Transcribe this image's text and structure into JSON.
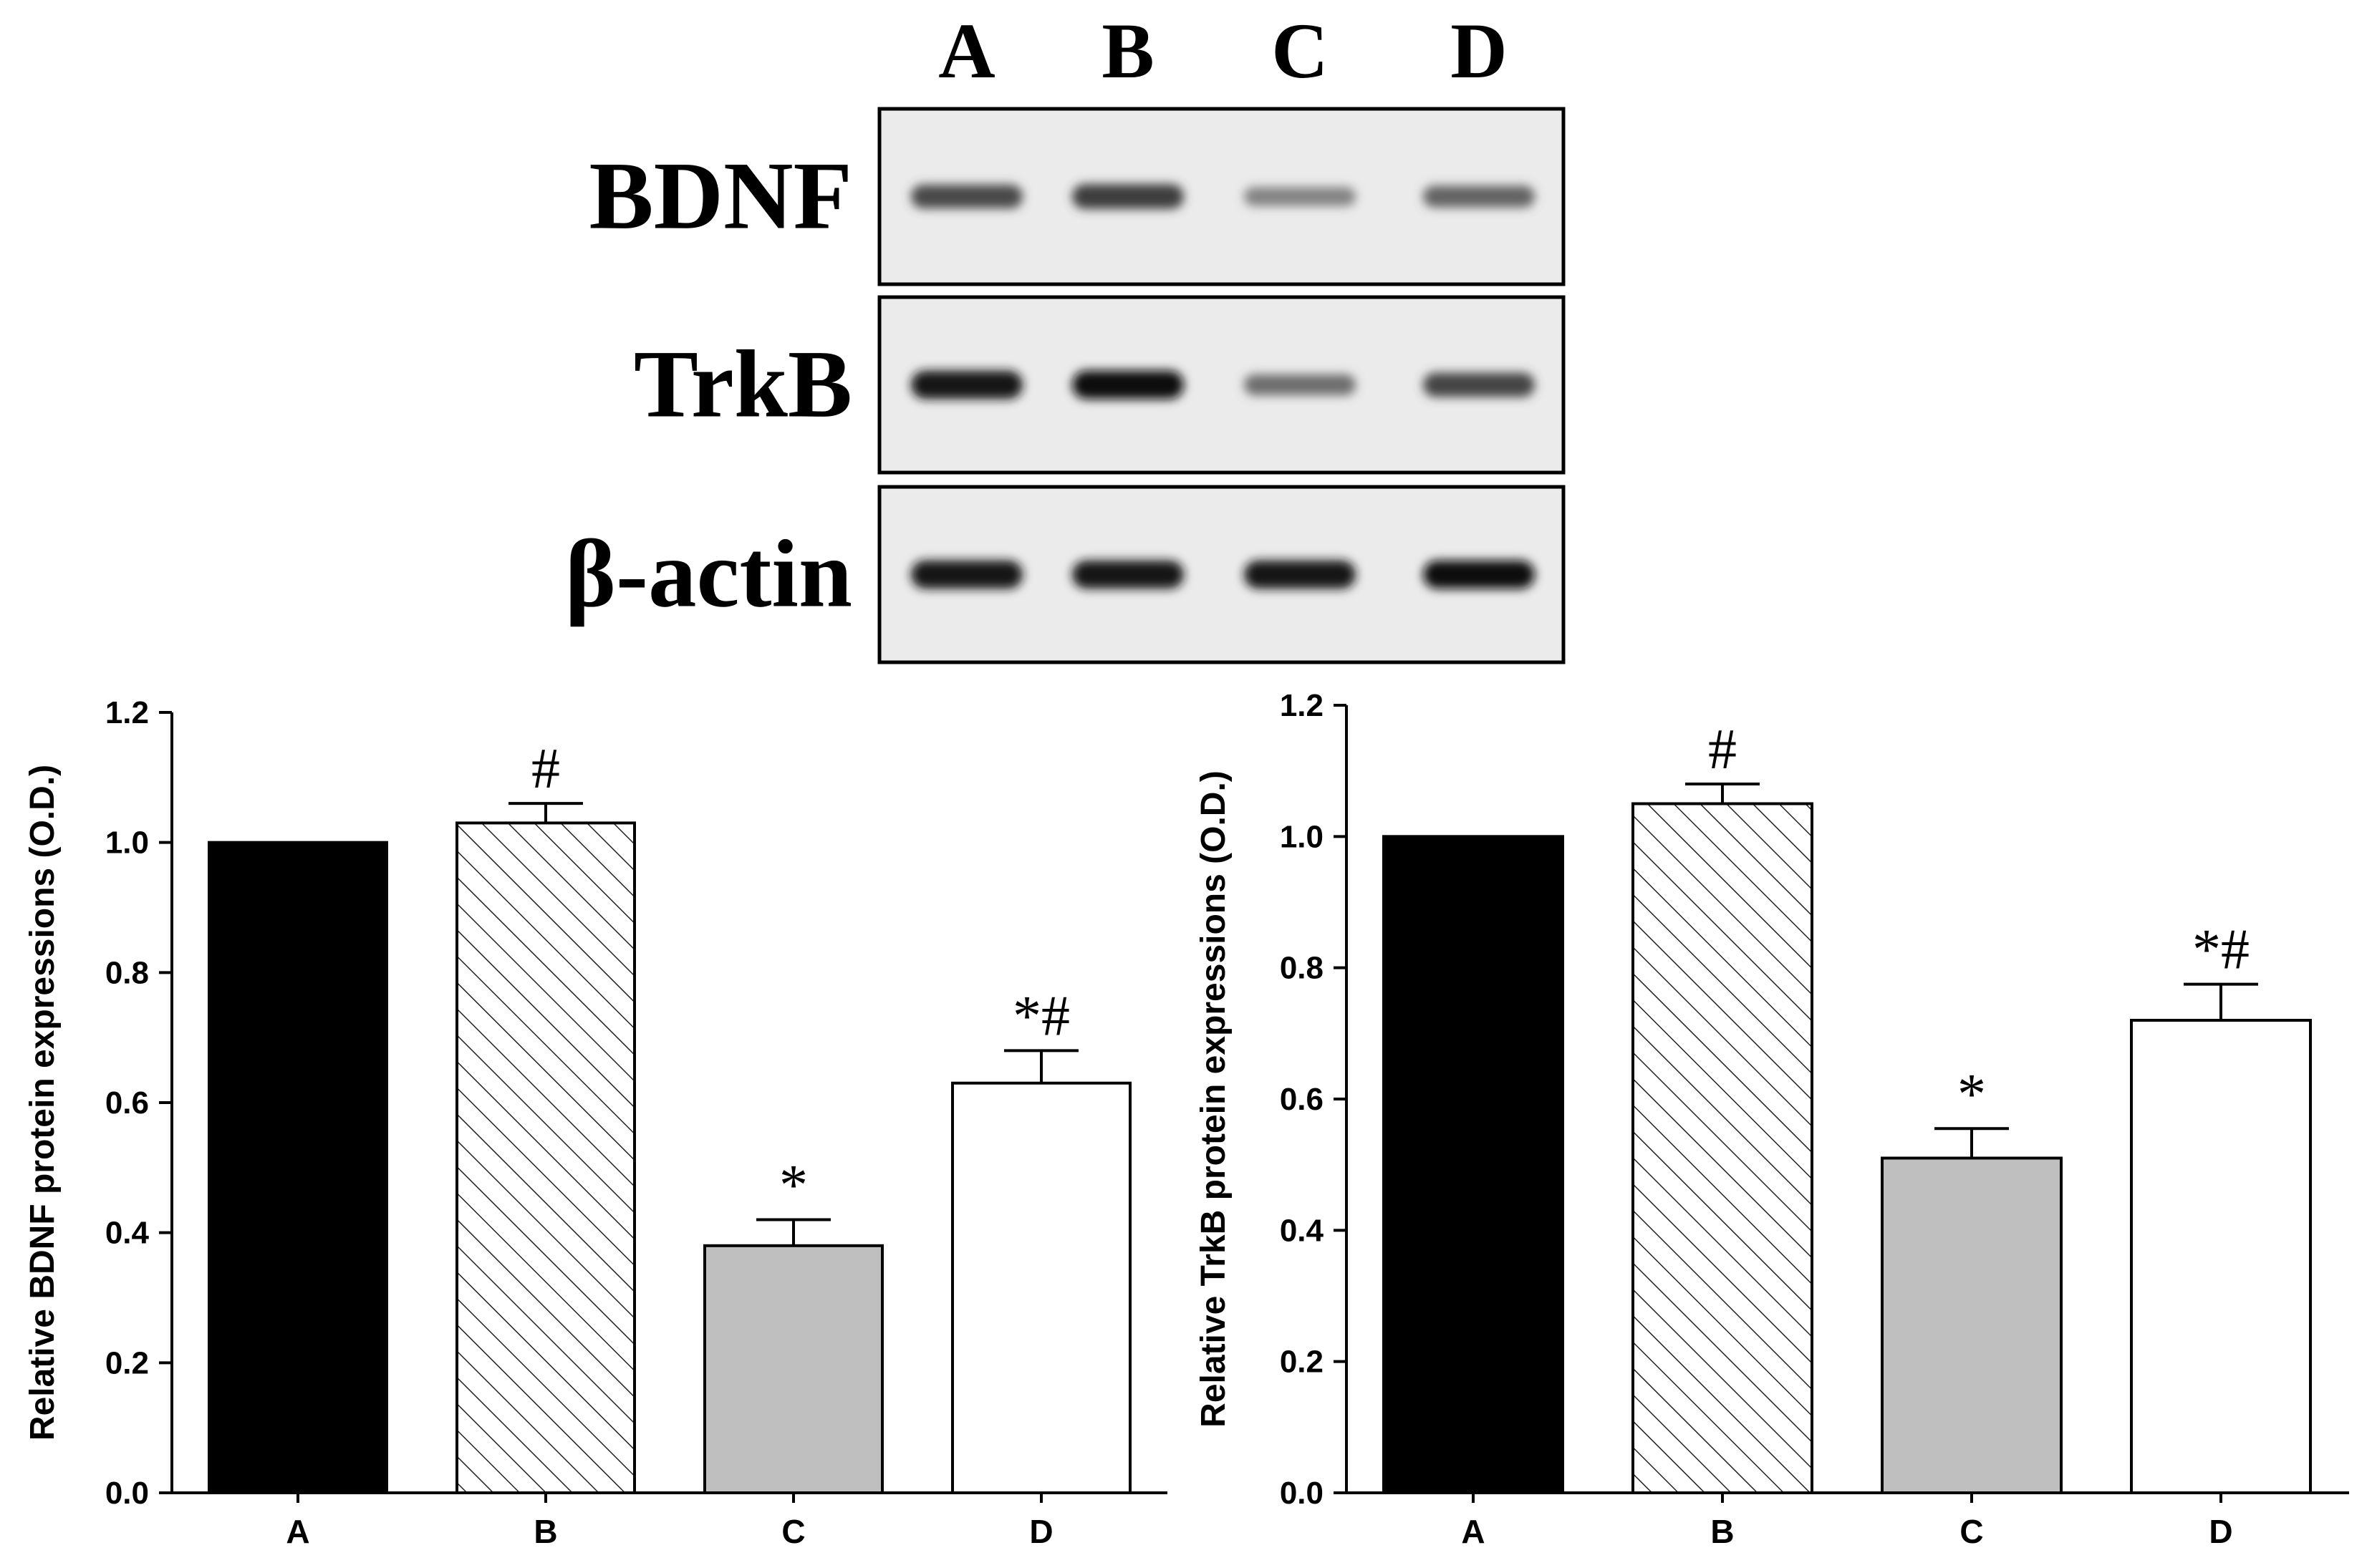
{
  "blot": {
    "lanes": [
      "A",
      "B",
      "C",
      "D"
    ],
    "rows": [
      {
        "label": "BDNF",
        "intensities": [
          0.72,
          0.78,
          0.45,
          0.6
        ]
      },
      {
        "label": "TrkB",
        "intensities": [
          0.98,
          1.0,
          0.55,
          0.75
        ]
      },
      {
        "label": "β-actin",
        "intensities": [
          0.98,
          0.97,
          0.98,
          0.99
        ]
      }
    ]
  },
  "chart_data": [
    {
      "type": "bar",
      "categories": [
        "A",
        "B",
        "C",
        "D"
      ],
      "values": [
        1.0,
        1.03,
        0.38,
        0.63
      ],
      "errors": [
        0.0,
        0.03,
        0.04,
        0.05
      ],
      "annotations": [
        "",
        "#",
        "*",
        "*#"
      ],
      "fills": [
        "solid-black",
        "hatched",
        "solid-gray",
        "solid-white"
      ],
      "colors": {
        "black": "#000000",
        "gray": "#bfbfbf",
        "white": "#ffffff"
      },
      "ylabel": "Relative BDNF protein expressions (O.D.)",
      "xlabel": "",
      "ylim": [
        0,
        1.2
      ],
      "yticks": [
        "0.0",
        "0.2",
        "0.4",
        "0.6",
        "0.8",
        "1.0",
        "1.2"
      ],
      "grid": false
    },
    {
      "type": "bar",
      "categories": [
        "A",
        "B",
        "C",
        "D"
      ],
      "values": [
        1.0,
        1.05,
        0.51,
        0.72
      ],
      "errors": [
        0.0,
        0.03,
        0.045,
        0.055
      ],
      "annotations": [
        "",
        "#",
        "*",
        "*#"
      ],
      "fills": [
        "solid-black",
        "hatched",
        "solid-gray",
        "solid-white"
      ],
      "colors": {
        "black": "#000000",
        "gray": "#bfbfbf",
        "white": "#ffffff"
      },
      "ylabel": "Relative TrkB protein expressions (O.D.)",
      "xlabel": "",
      "ylim": [
        0,
        1.2
      ],
      "yticks": [
        "0.0",
        "0.2",
        "0.4",
        "0.6",
        "0.8",
        "1.0",
        "1.2"
      ],
      "grid": false
    }
  ]
}
